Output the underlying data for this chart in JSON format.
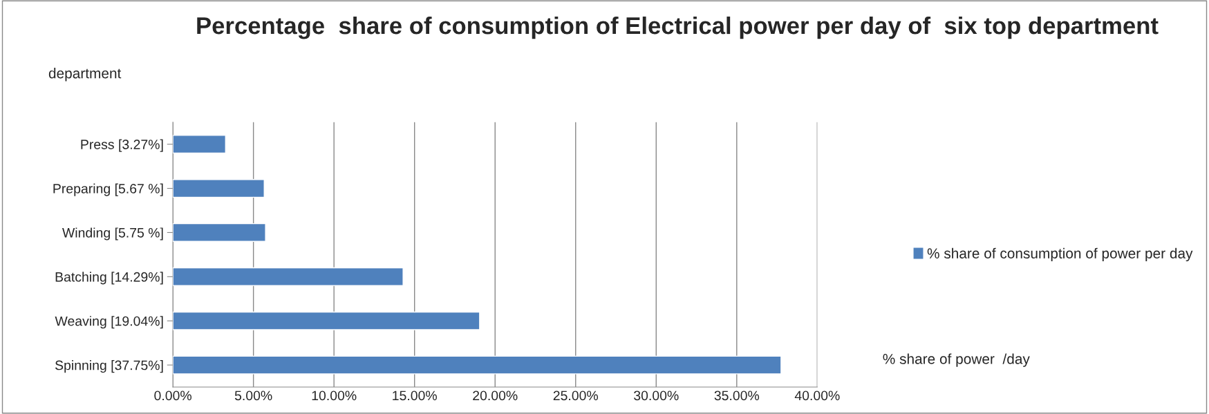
{
  "chart_data": {
    "type": "bar",
    "orientation": "horizontal",
    "title": "Percentage  share of consumption of Electrical power per day of  six top department",
    "annotations": [
      "department",
      "% share of power  /day"
    ],
    "categories": [
      "Press [3.27%]",
      "Preparing [5.67 %]",
      "Winding [5.75 %]",
      "Batching [14.29%]",
      "Weaving [19.04%]",
      "Spinning [37.75%]"
    ],
    "series": [
      {
        "name": "% share of consumption of power per day",
        "color": "#4f81bd",
        "values": [
          3.27,
          5.67,
          5.75,
          14.29,
          19.04,
          37.75
        ]
      }
    ],
    "xlim": [
      0,
      40
    ],
    "xticks": [
      {
        "value": 0,
        "label": "0.00%"
      },
      {
        "value": 5,
        "label": "5.00%"
      },
      {
        "value": 10,
        "label": "10.00%"
      },
      {
        "value": 15,
        "label": "15.00%"
      },
      {
        "value": 20,
        "label": "20.00%"
      },
      {
        "value": 25,
        "label": "25.00%"
      },
      {
        "value": 30,
        "label": "30.00%"
      },
      {
        "value": 35,
        "label": "35.00%"
      },
      {
        "value": 40,
        "label": "40.00%"
      }
    ],
    "grid": "x",
    "legend": "right"
  }
}
